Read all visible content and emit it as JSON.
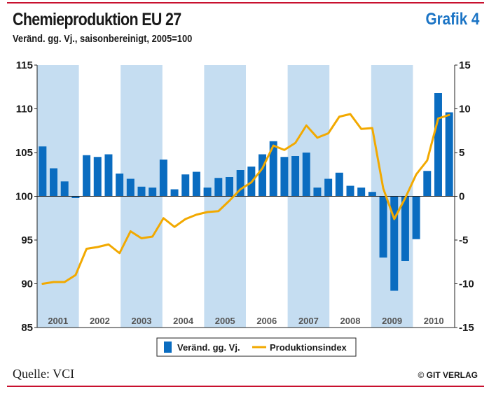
{
  "header": {
    "title": "Chemieproduktion EU 27",
    "badge": "Grafik 4",
    "subtitle": "Veränd. gg. Vj., saisonbereinigt, 2005=100"
  },
  "footer": {
    "source": "Quelle: VCI",
    "copyright": "© GIT VERLAG"
  },
  "colors": {
    "bars": "#0a6cc0",
    "line": "#f2a900",
    "band": "#c5ddf1",
    "axis": "#222222",
    "year_label": "#555555"
  },
  "chart_data": {
    "type": "bar+line",
    "title": "Chemieproduktion EU 27",
    "left_axis": {
      "min": 85,
      "max": 115,
      "ticks": [
        "115",
        "110",
        "105",
        "100",
        "95",
        "90",
        "85"
      ]
    },
    "right_axis": {
      "min": -15,
      "max": 15,
      "ticks": [
        "15",
        "10",
        "5",
        "0",
        "-5",
        "-10",
        "-15"
      ]
    },
    "years": [
      "2001",
      "2002",
      "2003",
      "2004",
      "2005",
      "2006",
      "2007",
      "2008",
      "2009",
      "2010"
    ],
    "shaded_years": [
      "2001",
      "2003",
      "2005",
      "2007",
      "2009"
    ],
    "legend": {
      "bars": "Veränd. gg. Vj.",
      "line": "Produktionsindex"
    },
    "series": [
      {
        "name": "Veränd. gg. Vj.",
        "type": "bar",
        "axis": "right",
        "values": [
          5.7,
          3.2,
          1.7,
          -0.2,
          4.7,
          4.5,
          4.8,
          2.6,
          2.0,
          1.1,
          1.0,
          4.2,
          0.8,
          2.5,
          2.8,
          1.0,
          2.1,
          2.2,
          3.0,
          3.4,
          4.8,
          6.3,
          4.5,
          4.6,
          5.0,
          1.0,
          2.0,
          2.7,
          1.2,
          1.0,
          0.5,
          -7.0,
          -10.8,
          -7.4,
          -4.9,
          2.9,
          11.8,
          9.6
        ]
      },
      {
        "name": "Produktionsindex",
        "type": "line",
        "axis": "left",
        "values": [
          90.0,
          90.2,
          90.2,
          91.0,
          94.0,
          94.2,
          94.5,
          93.5,
          96.0,
          95.2,
          95.4,
          97.5,
          96.5,
          97.4,
          97.9,
          98.2,
          98.3,
          99.5,
          100.8,
          101.6,
          103.2,
          105.8,
          105.3,
          106.1,
          108.1,
          106.7,
          107.2,
          109.1,
          109.4,
          107.7,
          107.8,
          100.9,
          97.4,
          99.8,
          102.5,
          104.1,
          108.9,
          109.3
        ]
      }
    ]
  }
}
